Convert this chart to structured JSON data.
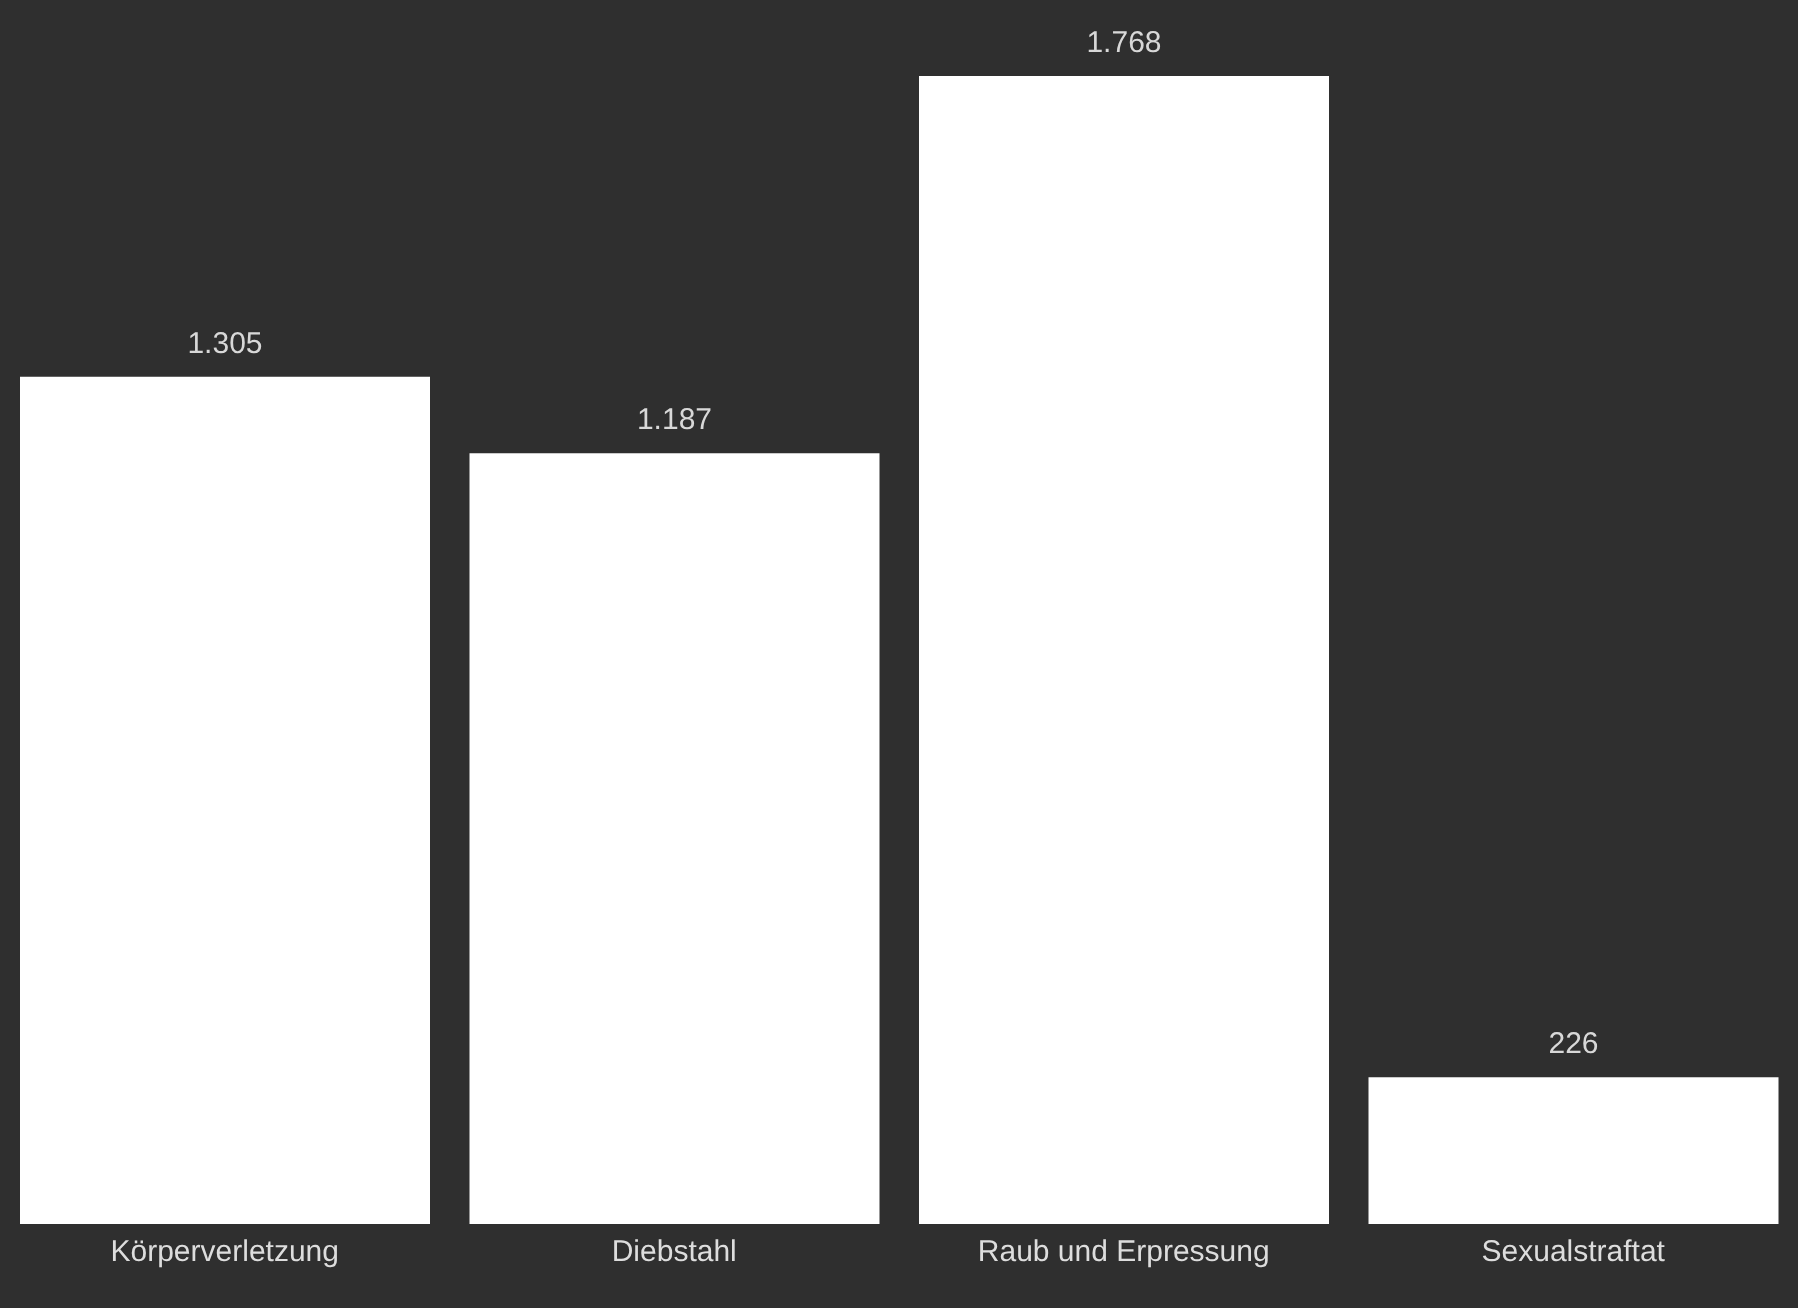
{
  "chart_data": {
    "type": "bar",
    "categories": [
      "Körperverletzung",
      "Diebstahl",
      "Raub und Erpressung",
      "Sexualstraftat"
    ],
    "values": [
      1305,
      1187,
      1768,
      226
    ],
    "value_labels": [
      "1.305",
      "1.187",
      "1.768",
      "226"
    ],
    "color": "#ffffff"
  }
}
